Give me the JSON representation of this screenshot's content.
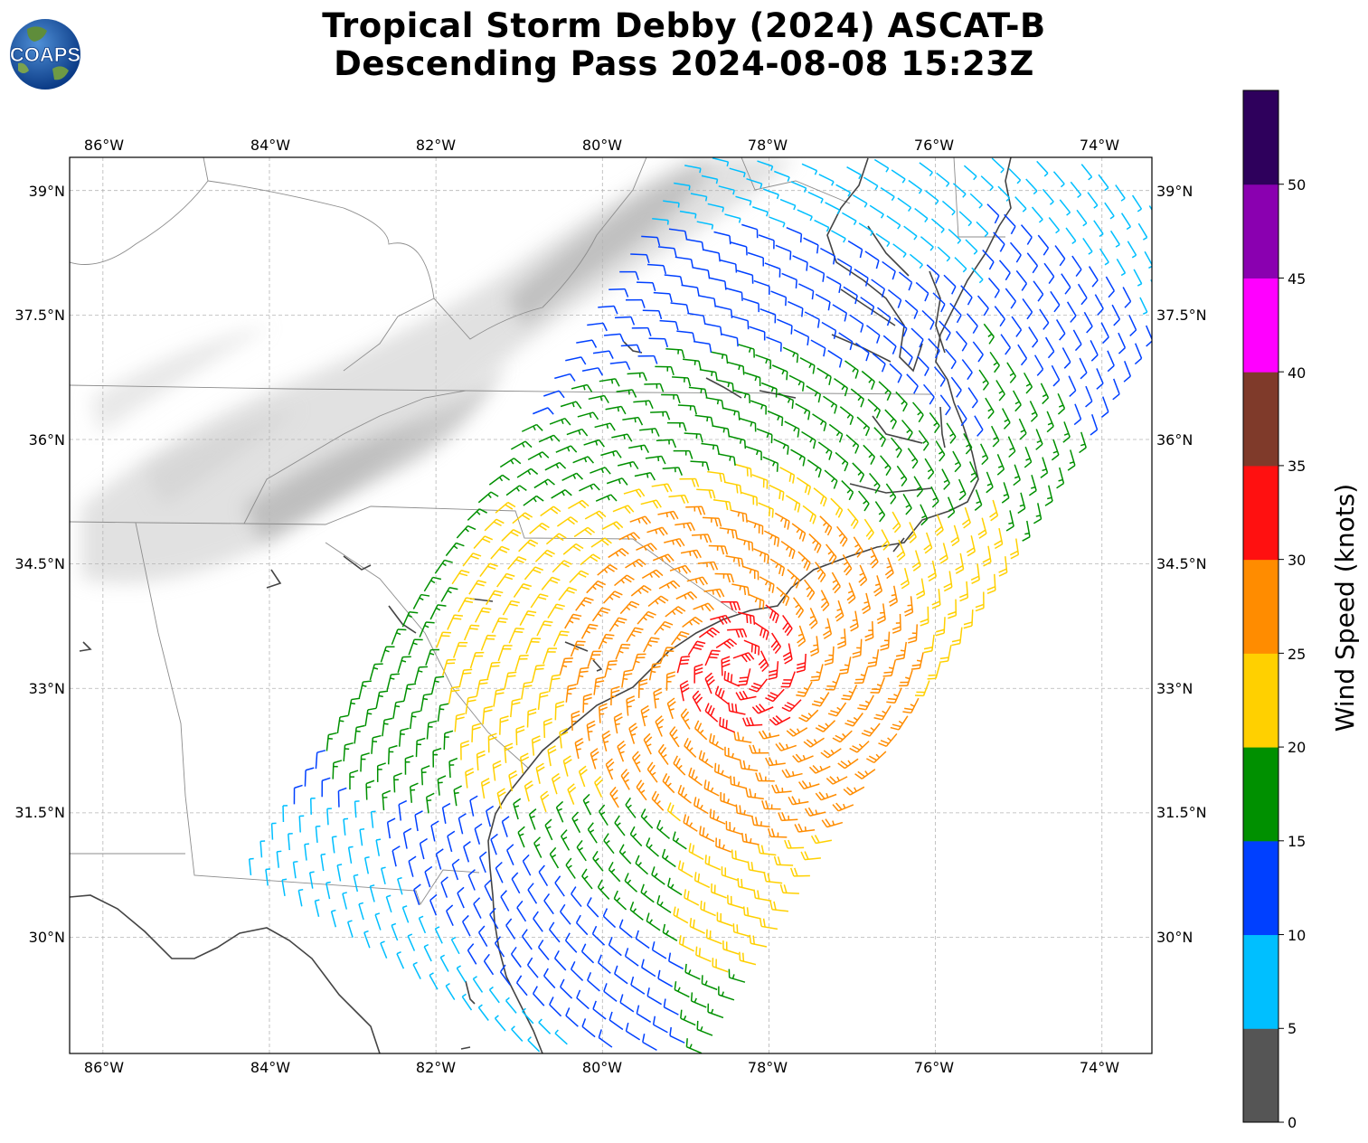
{
  "title_line1": "Tropical Storm Debby (2024) ASCAT-B",
  "title_line2": "Descending Pass 2024-08-08 15:23Z",
  "logo_text": "COAPS",
  "map": {
    "lon_range": [
      -86.4,
      -73.4
    ],
    "lat_range": [
      28.6,
      39.4
    ],
    "lon_ticks": [
      "86°W",
      "84°W",
      "82°W",
      "80°W",
      "78°W",
      "76°W",
      "74°W"
    ],
    "lat_ticks": [
      "39°N",
      "37.5°N",
      "36°N",
      "34.5°N",
      "33°N",
      "31.5°N",
      "30°N"
    ],
    "grid": true
  },
  "colorbar": {
    "label": "Wind Speed (knots)",
    "ticks": [
      "0",
      "5",
      "10",
      "15",
      "20",
      "25",
      "30",
      "35",
      "40",
      "45",
      "50"
    ],
    "colors": [
      "#555555",
      "#00bfff",
      "#0040ff",
      "#009000",
      "#ffd000",
      "#ff8c00",
      "#ff1010",
      "#7f3a2a",
      "#ff00ff",
      "#8a00b0",
      "#2e005c"
    ]
  }
}
